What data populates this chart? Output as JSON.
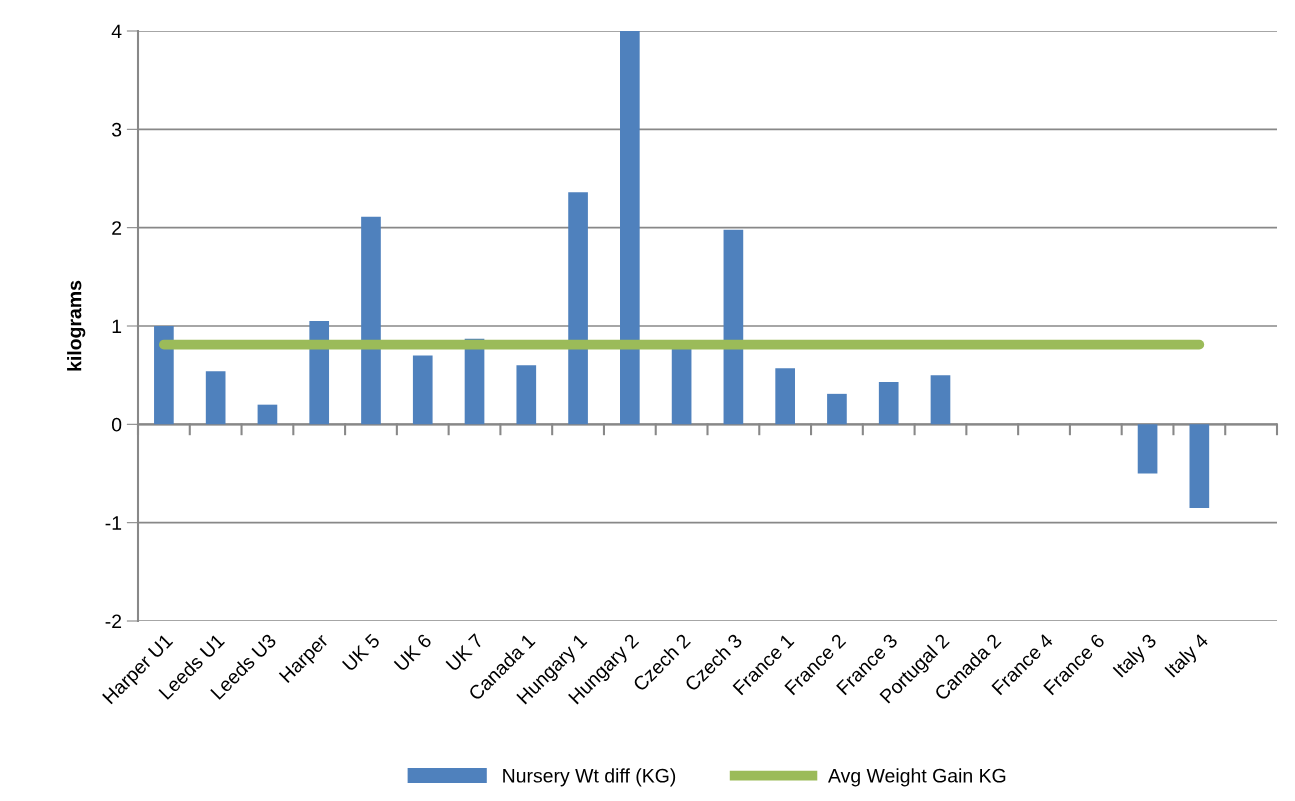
{
  "chart_data": {
    "type": "bar",
    "ylabel": "kilograms",
    "categories": [
      "Harper U1",
      "Leeds U1",
      "Leeds U3",
      "Harper",
      "UK 5",
      "UK 6",
      "UK 7",
      "Canada 1",
      "Hungary 1",
      "Hungary 2",
      "Czech 2",
      "Czech 3",
      "France 1",
      "France 2",
      "France 3",
      "Portugal 2",
      "Canada 2",
      "France 4",
      "France 6",
      "Italy 3",
      "Italy 4",
      null
    ],
    "series": [
      {
        "name": "Nursery Wt diff (KG)",
        "color": "#4f81bd",
        "values": [
          1.0,
          0.54,
          0.2,
          1.05,
          2.11,
          0.7,
          0.87,
          0.6,
          2.36,
          4.0,
          0.78,
          1.98,
          0.57,
          0.31,
          0.43,
          0.5,
          null,
          null,
          null,
          -0.5,
          -0.85,
          null
        ]
      },
      {
        "name": "Avg Weight Gain KG",
        "type": "line",
        "color": "#9bbb59",
        "values": [
          0.81,
          0.81,
          0.81,
          0.81,
          0.81,
          0.81,
          0.81,
          0.81,
          0.81,
          0.81,
          0.81,
          0.81,
          0.81,
          0.81,
          0.81,
          0.81,
          0.81,
          0.81,
          0.81,
          0.81,
          0.81,
          null
        ]
      }
    ],
    "ylim": [
      -2,
      4
    ],
    "yticks": [
      -2,
      -1,
      0,
      1,
      2,
      3,
      4
    ],
    "grid": "y",
    "legend": "bottom"
  }
}
